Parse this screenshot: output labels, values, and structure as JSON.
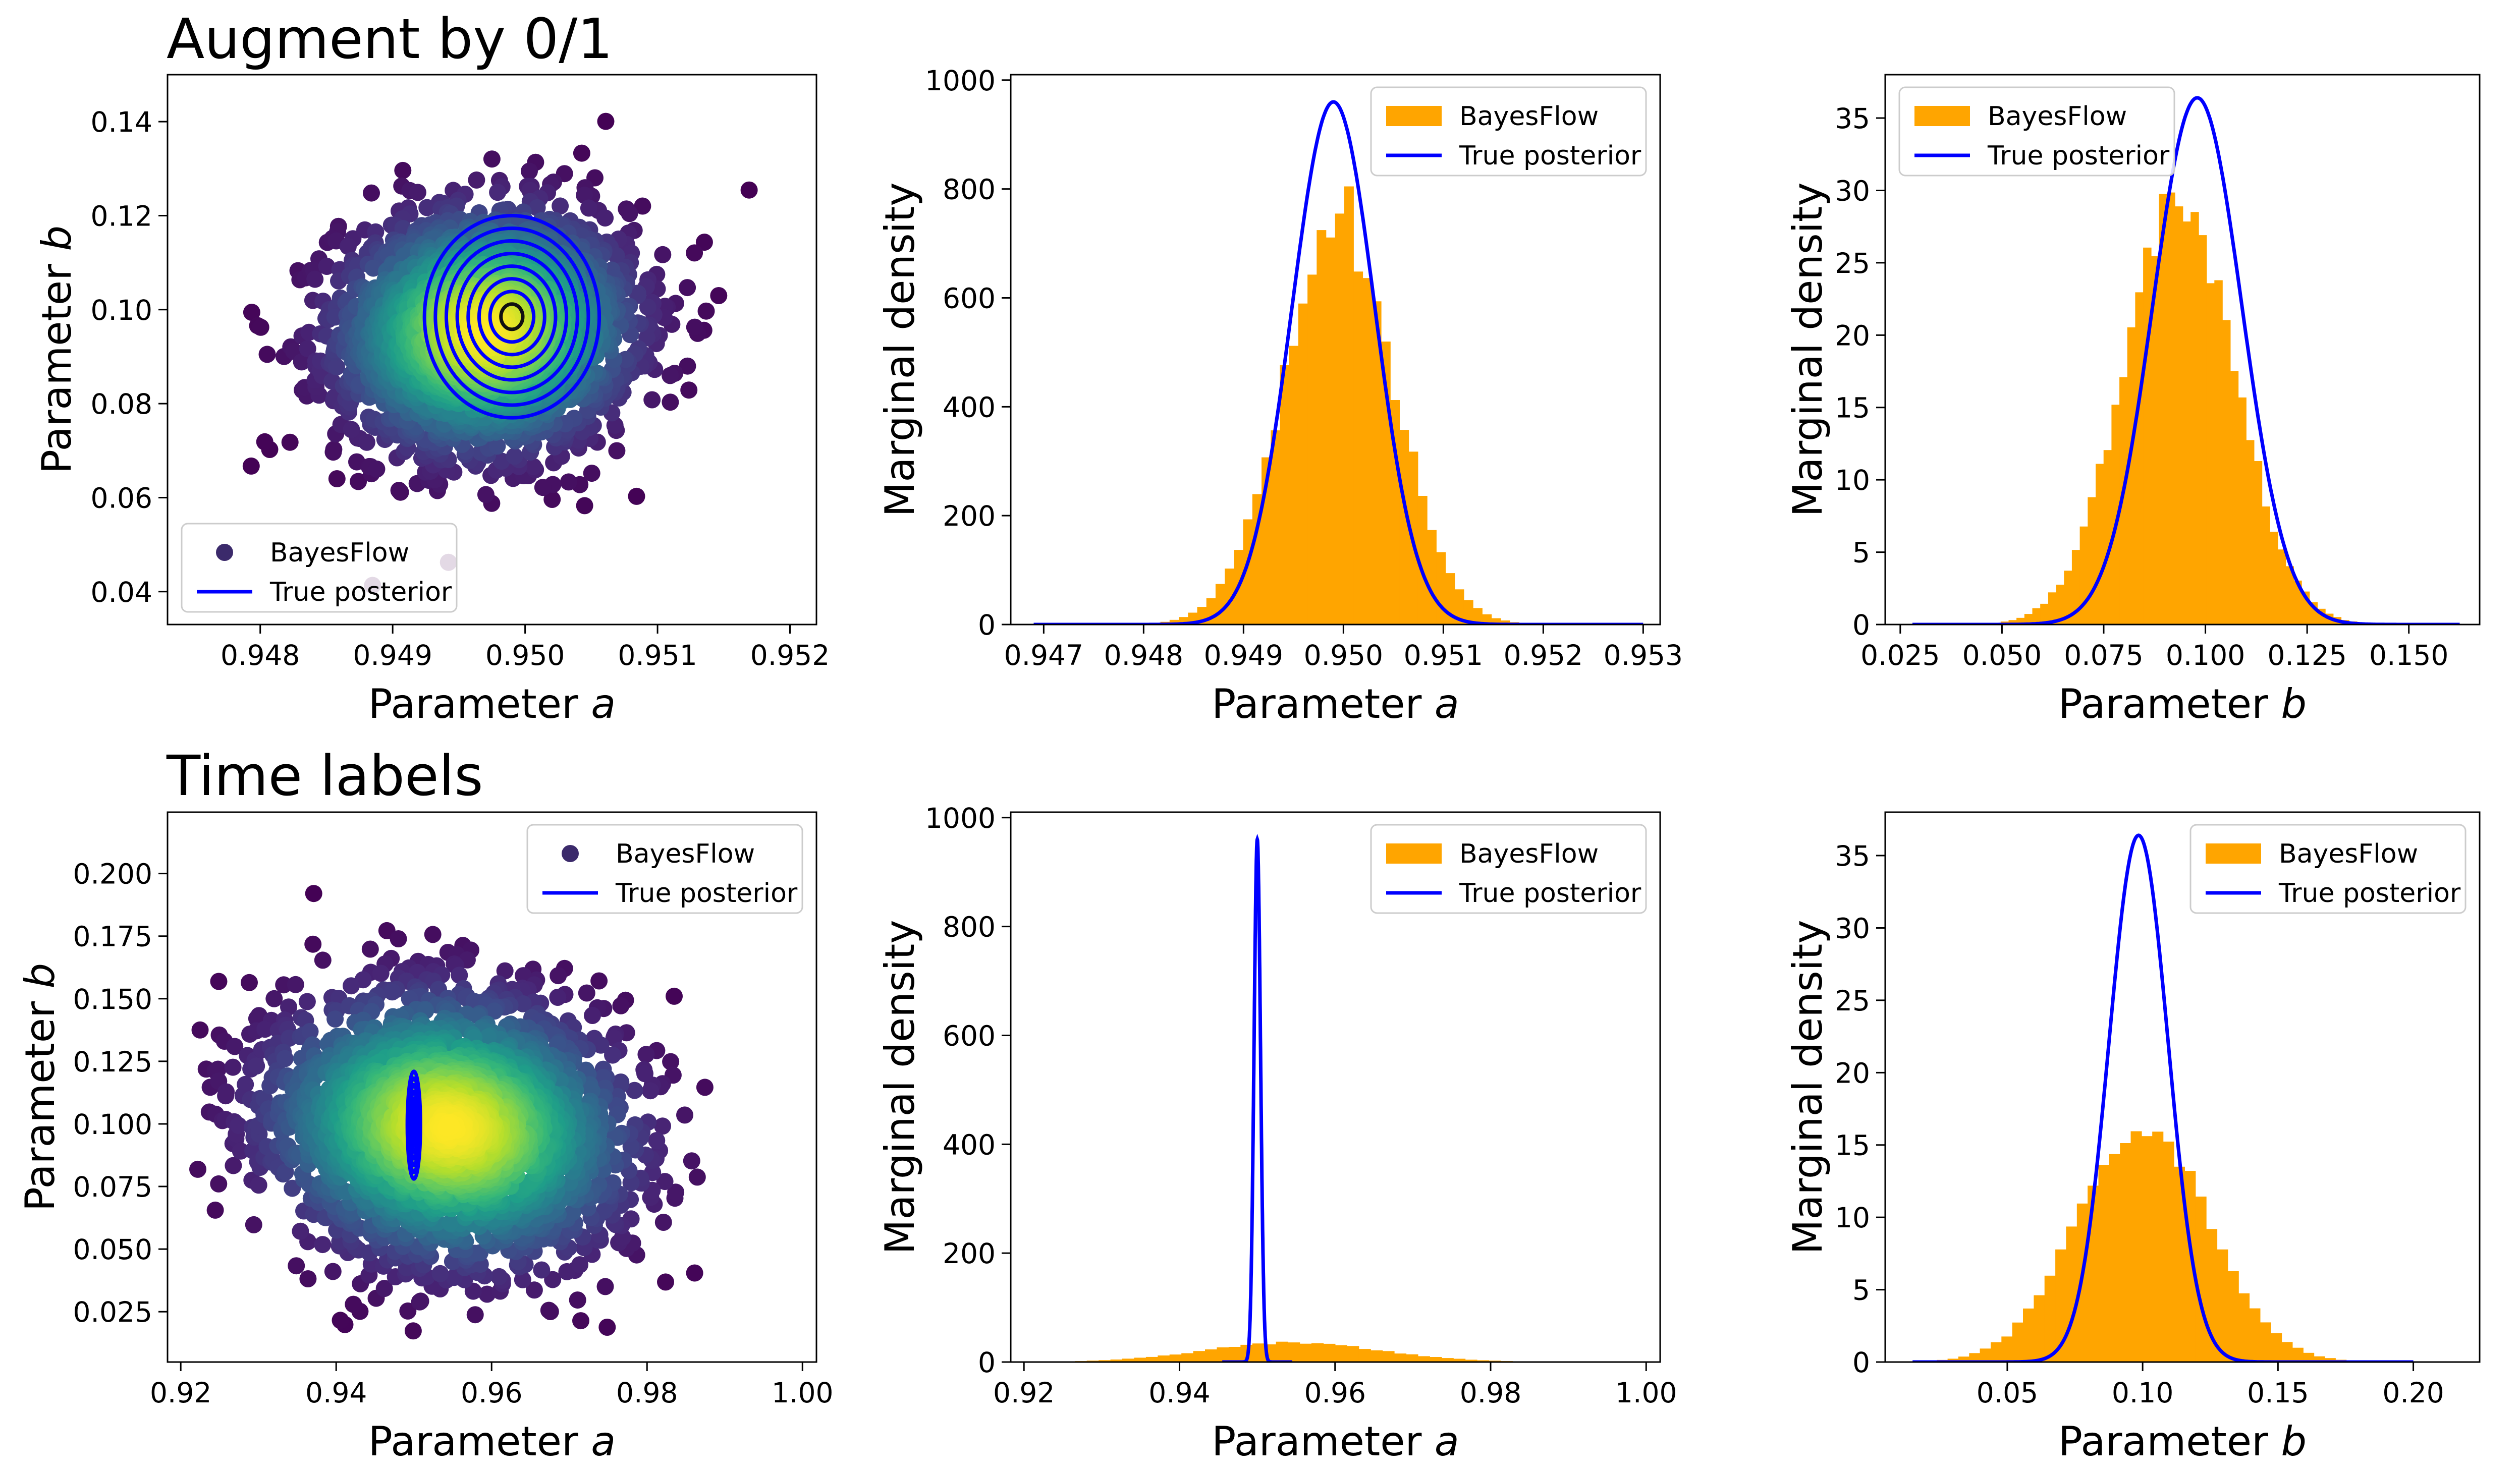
{
  "row_titles": [
    "Augment by 0/1",
    "Time labels"
  ],
  "colors": {
    "bayesflow": "#FFA500",
    "true_posterior": "#0000FF",
    "scatter_low": "#440154",
    "scatter_high": "#FDE725"
  },
  "chart_data": [
    {
      "type": "scatter",
      "row": 0,
      "col": 0,
      "title": "Augment by 0/1",
      "xlabel": "Parameter a",
      "ylabel": "Parameter b",
      "xlim": [
        0.9473,
        0.9522
      ],
      "ylim": [
        0.033,
        0.15
      ],
      "xticks": [
        0.948,
        0.949,
        0.95,
        0.951,
        0.952
      ],
      "yticks": [
        0.04,
        0.06,
        0.08,
        0.1,
        0.12,
        0.14
      ],
      "xtick_labels": [
        "0.948",
        "0.949",
        "0.950",
        "0.951",
        "0.952"
      ],
      "ytick_labels": [
        "0.04",
        "0.06",
        "0.08",
        "0.10",
        "0.12",
        "0.14"
      ],
      "legend": {
        "position": "lower-left",
        "entries": [
          {
            "label": "BayesFlow",
            "kind": "marker"
          },
          {
            "label": "True posterior",
            "kind": "line"
          }
        ]
      },
      "scatter": {
        "center": [
          0.9497,
          0.0955
        ],
        "sd": [
          0.00055,
          0.0127
        ],
        "xrange": [
          0.9475,
          0.9522
        ],
        "yrange": [
          0.038,
          0.145
        ],
        "n": 2600,
        "corr": 0.05
      },
      "contours": {
        "center": [
          0.9499,
          0.0985
        ],
        "rx": 0.00066,
        "ry": 0.0215,
        "levels": 8
      }
    },
    {
      "type": "histogram",
      "row": 0,
      "col": 1,
      "xlabel": "Parameter a",
      "ylabel": "Marginal density",
      "xlim": [
        0.94667,
        0.95317
      ],
      "ylim": [
        0,
        1010
      ],
      "xticks": [
        0.947,
        0.948,
        0.949,
        0.95,
        0.951,
        0.952,
        0.953
      ],
      "yticks": [
        0,
        200,
        400,
        600,
        800,
        1000
      ],
      "xtick_labels": [
        "0.947",
        "0.948",
        "0.949",
        "0.950",
        "0.951",
        "0.952",
        "0.953"
      ],
      "ytick_labels": [
        "0",
        "200",
        "400",
        "600",
        "800",
        "1000"
      ],
      "legend": {
        "position": "top-right",
        "entries": [
          {
            "label": "BayesFlow",
            "kind": "patch"
          },
          {
            "label": "True posterior",
            "kind": "line"
          }
        ]
      },
      "histogram": {
        "center": 0.94995,
        "sd": 0.00055,
        "range": [
          0.9478,
          0.9524
        ],
        "bins": 50,
        "peak_bump": 0.08
      },
      "posterior": {
        "mean": 0.9499,
        "sd": 0.000415,
        "peak": 960,
        "range": [
          0.9469,
          0.953
        ]
      }
    },
    {
      "type": "histogram",
      "row": 0,
      "col": 2,
      "xlabel": "Parameter b",
      "ylabel": "Marginal density",
      "xlim": [
        0.0213,
        0.1674
      ],
      "ylim": [
        0,
        38
      ],
      "xticks": [
        0.025,
        0.05,
        0.075,
        0.1,
        0.125,
        0.15
      ],
      "yticks": [
        0,
        5,
        10,
        15,
        20,
        25,
        30,
        35
      ],
      "xtick_labels": [
        "0.025",
        "0.050",
        "0.075",
        "0.100",
        "0.125",
        "0.150"
      ],
      "ytick_labels": [
        "0",
        "5",
        "10",
        "15",
        "20",
        "25",
        "30",
        "35"
      ],
      "legend": {
        "position": "top-left",
        "entries": [
          {
            "label": "BayesFlow",
            "kind": "patch"
          },
          {
            "label": "True posterior",
            "kind": "line"
          }
        ]
      },
      "histogram": {
        "center": 0.0935,
        "sd": 0.0136,
        "range": [
          0.038,
          0.145
        ],
        "bins": 55,
        "peak_bump": 0.05
      },
      "posterior": {
        "mean": 0.098,
        "sd": 0.01095,
        "peak": 36.4,
        "range": [
          0.028,
          0.1625
        ]
      }
    },
    {
      "type": "scatter",
      "row": 1,
      "col": 0,
      "title": "Time labels",
      "xlabel": "Parameter a",
      "ylabel": "Parameter b",
      "xlim": [
        0.9183,
        1.0018
      ],
      "ylim": [
        0.0049,
        0.2245
      ],
      "xticks": [
        0.92,
        0.94,
        0.96,
        0.98,
        1.0
      ],
      "yticks": [
        0.025,
        0.05,
        0.075,
        0.1,
        0.125,
        0.15,
        0.175,
        0.2
      ],
      "xtick_labels": [
        "0.92",
        "0.94",
        "0.96",
        "0.98",
        "1.00"
      ],
      "ytick_labels": [
        "0.025",
        "0.050",
        "0.075",
        "0.100",
        "0.125",
        "0.150",
        "0.175",
        "0.200"
      ],
      "legend": {
        "position": "top-right",
        "entries": [
          {
            "label": "BayesFlow",
            "kind": "marker"
          },
          {
            "label": "True posterior",
            "kind": "line"
          }
        ]
      },
      "scatter": {
        "center": [
          0.9545,
          0.0985
        ],
        "sd": [
          0.0115,
          0.0265
        ],
        "xrange": [
          0.922,
          0.998
        ],
        "yrange": [
          0.016,
          0.215
        ],
        "n": 2600,
        "corr": -0.1
      },
      "contours": {
        "center": [
          0.95,
          0.0995
        ],
        "rx": 0.00085,
        "ry": 0.0215,
        "levels": 8
      }
    },
    {
      "type": "histogram",
      "row": 1,
      "col": 1,
      "xlabel": "Parameter a",
      "ylabel": "Marginal density",
      "xlim": [
        0.9183,
        1.0018
      ],
      "ylim": [
        0,
        1010
      ],
      "xticks": [
        0.92,
        0.94,
        0.96,
        0.98,
        1.0
      ],
      "yticks": [
        0,
        200,
        400,
        600,
        800,
        1000
      ],
      "xtick_labels": [
        "0.92",
        "0.94",
        "0.96",
        "0.98",
        "1.00"
      ],
      "ytick_labels": [
        "0",
        "200",
        "400",
        "600",
        "800",
        "1000"
      ],
      "legend": {
        "position": "top-right",
        "entries": [
          {
            "label": "BayesFlow",
            "kind": "patch"
          },
          {
            "label": "True posterior",
            "kind": "line"
          }
        ]
      },
      "histogram": {
        "center": 0.9545,
        "sd": 0.0112,
        "range": [
          0.922,
          0.998
        ],
        "bins": 50,
        "peak_bump": 0.0
      },
      "posterior": {
        "mean": 0.95,
        "sd": 0.000415,
        "peak": 960,
        "range": [
          0.9455,
          0.9545
        ]
      }
    },
    {
      "type": "histogram",
      "row": 1,
      "col": 2,
      "xlabel": "Parameter b",
      "ylabel": "Marginal density",
      "xlim": [
        0.0049,
        0.2245
      ],
      "ylim": [
        0,
        38
      ],
      "xticks": [
        0.05,
        0.1,
        0.15,
        0.2
      ],
      "yticks": [
        0,
        5,
        10,
        15,
        20,
        25,
        30,
        35
      ],
      "xtick_labels": [
        "0.05",
        "0.10",
        "0.15",
        "0.20"
      ],
      "ytick_labels": [
        "0",
        "5",
        "10",
        "15",
        "20",
        "25",
        "30",
        "35"
      ],
      "legend": {
        "position": "top-right",
        "entries": [
          {
            "label": "BayesFlow",
            "kind": "patch"
          },
          {
            "label": "True posterior",
            "kind": "line"
          }
        ]
      },
      "histogram": {
        "center": 0.1,
        "sd": 0.024,
        "range": [
          0.016,
          0.215
        ],
        "bins": 50,
        "peak_bump": 0.0
      },
      "posterior": {
        "mean": 0.0985,
        "sd": 0.01095,
        "peak": 36.4,
        "range": [
          0.015,
          0.2
        ]
      }
    }
  ]
}
